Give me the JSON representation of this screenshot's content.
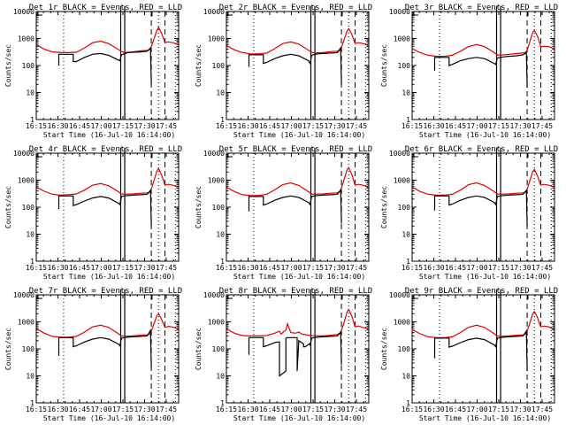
{
  "figure": {
    "xlabel": "Start Time (16-Jul-10 16:14:00)",
    "ylabel": "Counts/sec"
  },
  "chart_data": {
    "type": "line",
    "layout": "3x3 grid",
    "shared": {
      "xlabel": "Start Time (16-Jul-10 16:14:00)",
      "ylabel": "Counts/sec",
      "x_unit": "minutes after 16:00 UT",
      "xlim": [
        15,
        103.5
      ],
      "x_ticks": [
        15,
        30,
        45,
        60,
        75,
        90,
        105
      ],
      "x_tick_labels": [
        "16:15",
        "16:30",
        "16:45",
        "17:00",
        "17:15",
        "17:30",
        "17:45"
      ],
      "yscale": "log",
      "ylim": [
        1,
        10000
      ],
      "y_ticks": [
        1,
        10,
        100,
        1000,
        10000
      ],
      "y_tick_labels": [
        "1",
        "10",
        "100",
        "1000",
        "10000"
      ],
      "legend_text": "BLACK = Events, RED = LLD",
      "series_colors": {
        "events": "#000000",
        "lld": "#e00000"
      },
      "markers": {
        "dotted": [
          32,
          101.5
        ],
        "solid": [
          67.5,
          70
        ],
        "dashed": [
          86.5,
          95
        ],
        "dotted_peak": [
          91
        ],
        "top_bracket": [
          87,
          92,
          95
        ]
      },
      "x_times_label": "17:45 shown at minute 105 tick"
    },
    "panels": [
      {
        "title": "Det 1r BLACK = Events, RED = LLD",
        "lld": {
          "x": [
            15,
            20,
            25,
            30,
            35,
            40,
            45,
            50,
            55,
            60,
            65,
            68,
            70,
            75,
            80,
            84,
            86,
            88,
            90,
            91,
            93,
            95,
            97,
            100,
            103
          ],
          "y": [
            600,
            400,
            320,
            300,
            300,
            310,
            450,
            700,
            800,
            650,
            430,
            330,
            300,
            320,
            350,
            360,
            400,
            900,
            2000,
            2600,
            1500,
            700,
            750,
            700,
            600
          ]
        },
        "events": {
          "x": [
            29,
            29,
            32,
            38,
            38,
            40,
            45,
            50,
            55,
            60,
            66,
            67,
            68,
            70,
            72,
            75,
            80,
            84,
            86,
            86.5
          ],
          "y": [
            100,
            260,
            260,
            260,
            140,
            140,
            200,
            260,
            280,
            240,
            160,
            150,
            250,
            280,
            300,
            310,
            320,
            340,
            450,
            20
          ]
        }
      },
      {
        "title": "Det 2r BLACK = Events, RED = LLD",
        "lld": {
          "x": [
            15,
            20,
            25,
            30,
            35,
            40,
            45,
            50,
            55,
            60,
            65,
            68,
            70,
            75,
            80,
            84,
            86,
            88,
            90,
            91,
            93,
            95,
            97,
            100,
            103
          ],
          "y": [
            550,
            380,
            300,
            270,
            270,
            290,
            420,
            650,
            750,
            620,
            400,
            310,
            290,
            300,
            330,
            340,
            380,
            850,
            1900,
            2300,
            1400,
            650,
            700,
            650,
            550
          ]
        },
        "events": {
          "x": [
            29,
            29,
            32,
            38,
            38,
            40,
            45,
            50,
            55,
            60,
            66,
            67,
            68,
            70,
            72,
            75,
            80,
            84,
            86,
            86.5
          ],
          "y": [
            90,
            250,
            250,
            250,
            120,
            130,
            180,
            230,
            260,
            230,
            150,
            120,
            240,
            260,
            270,
            280,
            290,
            300,
            450,
            20
          ]
        }
      },
      {
        "title": "Det 3r BLACK = Events, RED = LLD",
        "lld": {
          "x": [
            15,
            20,
            25,
            30,
            35,
            40,
            45,
            50,
            55,
            60,
            65,
            68,
            70,
            75,
            80,
            84,
            86,
            88,
            90,
            91,
            93,
            95,
            97,
            100,
            103
          ],
          "y": [
            420,
            300,
            240,
            220,
            220,
            240,
            340,
            500,
            600,
            500,
            330,
            250,
            240,
            260,
            280,
            290,
            320,
            700,
            1700,
            2000,
            1200,
            500,
            520,
            500,
            420
          ]
        },
        "events": {
          "x": [
            29,
            29,
            32,
            38,
            38,
            40,
            45,
            50,
            55,
            60,
            66,
            67,
            68,
            70,
            72,
            75,
            80,
            84,
            86,
            86.5
          ],
          "y": [
            65,
            200,
            200,
            200,
            100,
            110,
            150,
            180,
            200,
            180,
            120,
            110,
            190,
            200,
            210,
            220,
            230,
            250,
            300,
            15
          ]
        }
      },
      {
        "title": "Det 4r BLACK = Events, RED = LLD",
        "lld": {
          "x": [
            15,
            20,
            25,
            30,
            35,
            40,
            45,
            50,
            55,
            60,
            65,
            68,
            70,
            75,
            80,
            84,
            86,
            88,
            90,
            91,
            93,
            95,
            97,
            100,
            103
          ],
          "y": [
            560,
            390,
            300,
            280,
            290,
            310,
            430,
            650,
            750,
            620,
            410,
            310,
            300,
            310,
            330,
            340,
            380,
            900,
            2200,
            2700,
            1500,
            650,
            700,
            650,
            560
          ]
        },
        "events": {
          "x": [
            29,
            29,
            32,
            38,
            38,
            40,
            45,
            50,
            55,
            60,
            66,
            67,
            68,
            70,
            72,
            75,
            80,
            84,
            86,
            86.5
          ],
          "y": [
            85,
            260,
            260,
            260,
            115,
            125,
            170,
            220,
            250,
            220,
            140,
            125,
            250,
            260,
            270,
            280,
            290,
            300,
            420,
            20
          ]
        }
      },
      {
        "title": "Det 5r BLACK = Events, RED = LLD",
        "lld": {
          "x": [
            15,
            20,
            25,
            30,
            35,
            40,
            45,
            50,
            55,
            60,
            65,
            68,
            70,
            75,
            80,
            84,
            86,
            88,
            90,
            91,
            93,
            95,
            97,
            100,
            103
          ],
          "y": [
            550,
            380,
            290,
            270,
            270,
            300,
            440,
            680,
            800,
            640,
            410,
            310,
            300,
            310,
            330,
            340,
            400,
            1000,
            2400,
            2900,
            1600,
            650,
            700,
            650,
            540
          ]
        },
        "events": {
          "x": [
            29,
            29,
            32,
            38,
            38,
            40,
            45,
            50,
            55,
            60,
            66,
            67,
            68,
            70,
            72,
            75,
            80,
            84,
            86,
            86.5
          ],
          "y": [
            70,
            250,
            250,
            250,
            120,
            130,
            180,
            230,
            260,
            230,
            150,
            125,
            250,
            260,
            270,
            280,
            290,
            300,
            440,
            25
          ]
        }
      },
      {
        "title": "Det 6r BLACK = Events, RED = LLD",
        "lld": {
          "x": [
            15,
            20,
            25,
            30,
            35,
            40,
            45,
            50,
            55,
            60,
            65,
            68,
            70,
            75,
            80,
            84,
            86,
            88,
            90,
            91,
            93,
            95,
            97,
            100,
            103
          ],
          "y": [
            560,
            380,
            300,
            280,
            280,
            300,
            430,
            680,
            800,
            640,
            410,
            310,
            300,
            310,
            330,
            340,
            380,
            900,
            2100,
            2500,
            1400,
            650,
            700,
            650,
            560
          ]
        },
        "events": {
          "x": [
            29,
            29,
            32,
            38,
            38,
            40,
            45,
            50,
            55,
            60,
            66,
            67,
            68,
            70,
            72,
            75,
            80,
            84,
            86,
            86.5
          ],
          "y": [
            75,
            260,
            260,
            260,
            120,
            130,
            180,
            230,
            260,
            230,
            150,
            125,
            250,
            260,
            270,
            280,
            290,
            300,
            420,
            20
          ]
        }
      },
      {
        "title": "Det 7r BLACK = Events, RED = LLD",
        "lld": {
          "x": [
            15,
            20,
            25,
            30,
            35,
            40,
            45,
            50,
            55,
            60,
            65,
            68,
            70,
            75,
            80,
            84,
            86,
            88,
            90,
            91,
            93,
            95,
            97,
            100,
            103
          ],
          "y": [
            560,
            380,
            290,
            270,
            270,
            290,
            420,
            650,
            750,
            620,
            400,
            300,
            290,
            300,
            320,
            330,
            370,
            800,
            1700,
            2000,
            1200,
            620,
            680,
            640,
            560
          ]
        },
        "events": {
          "x": [
            29,
            29,
            32,
            38,
            38,
            40,
            45,
            50,
            55,
            60,
            66,
            67,
            68,
            70,
            72,
            75,
            80,
            84,
            86,
            86.5
          ],
          "y": [
            55,
            260,
            260,
            260,
            120,
            130,
            180,
            230,
            260,
            230,
            150,
            130,
            250,
            260,
            270,
            280,
            290,
            300,
            480,
            20
          ]
        }
      },
      {
        "title": "Det 8r BLACK = Events, RED = LLD",
        "lld": {
          "x": [
            15,
            20,
            25,
            30,
            35,
            40,
            45,
            48,
            49,
            50,
            52,
            53,
            55,
            58,
            60,
            62,
            65,
            68,
            70,
            75,
            80,
            84,
            86,
            88,
            90,
            91,
            93,
            95,
            97,
            100,
            103
          ],
          "y": [
            550,
            380,
            310,
            300,
            300,
            310,
            380,
            450,
            350,
            400,
            500,
            850,
            400,
            380,
            420,
            350,
            330,
            310,
            300,
            300,
            320,
            340,
            400,
            900,
            2300,
            2900,
            1600,
            650,
            700,
            620,
            560
          ]
        },
        "events": {
          "x": [
            29,
            29,
            32,
            38,
            38,
            40,
            45,
            47,
            48,
            48,
            52,
            52,
            53,
            55,
            58,
            59,
            59,
            60,
            63,
            63,
            64,
            67,
            67,
            68,
            70,
            72,
            75,
            80,
            84,
            86,
            86.5
          ],
          "y": [
            60,
            260,
            260,
            260,
            120,
            130,
            170,
            180,
            180,
            10,
            15,
            250,
            260,
            260,
            260,
            260,
            15,
            200,
            150,
            120,
            120,
            160,
            130,
            250,
            260,
            270,
            280,
            290,
            300,
            420,
            25
          ]
        }
      },
      {
        "title": "Det 9r BLACK = Events, RED = LLD",
        "lld": {
          "x": [
            15,
            20,
            25,
            30,
            35,
            40,
            45,
            50,
            55,
            60,
            65,
            68,
            70,
            75,
            80,
            84,
            86,
            88,
            90,
            91,
            93,
            95,
            97,
            100,
            103
          ],
          "y": [
            520,
            360,
            280,
            260,
            260,
            280,
            400,
            620,
            750,
            620,
            400,
            300,
            290,
            300,
            320,
            330,
            370,
            850,
            2000,
            2400,
            1400,
            650,
            700,
            650,
            520
          ]
        },
        "events": {
          "x": [
            29,
            29,
            32,
            38,
            38,
            40,
            45,
            50,
            55,
            60,
            66,
            67,
            68,
            70,
            72,
            75,
            80,
            84,
            86,
            86.5
          ],
          "y": [
            45,
            250,
            250,
            250,
            115,
            125,
            170,
            220,
            250,
            220,
            140,
            120,
            250,
            260,
            270,
            280,
            290,
            300,
            460,
            15
          ]
        }
      }
    ]
  }
}
